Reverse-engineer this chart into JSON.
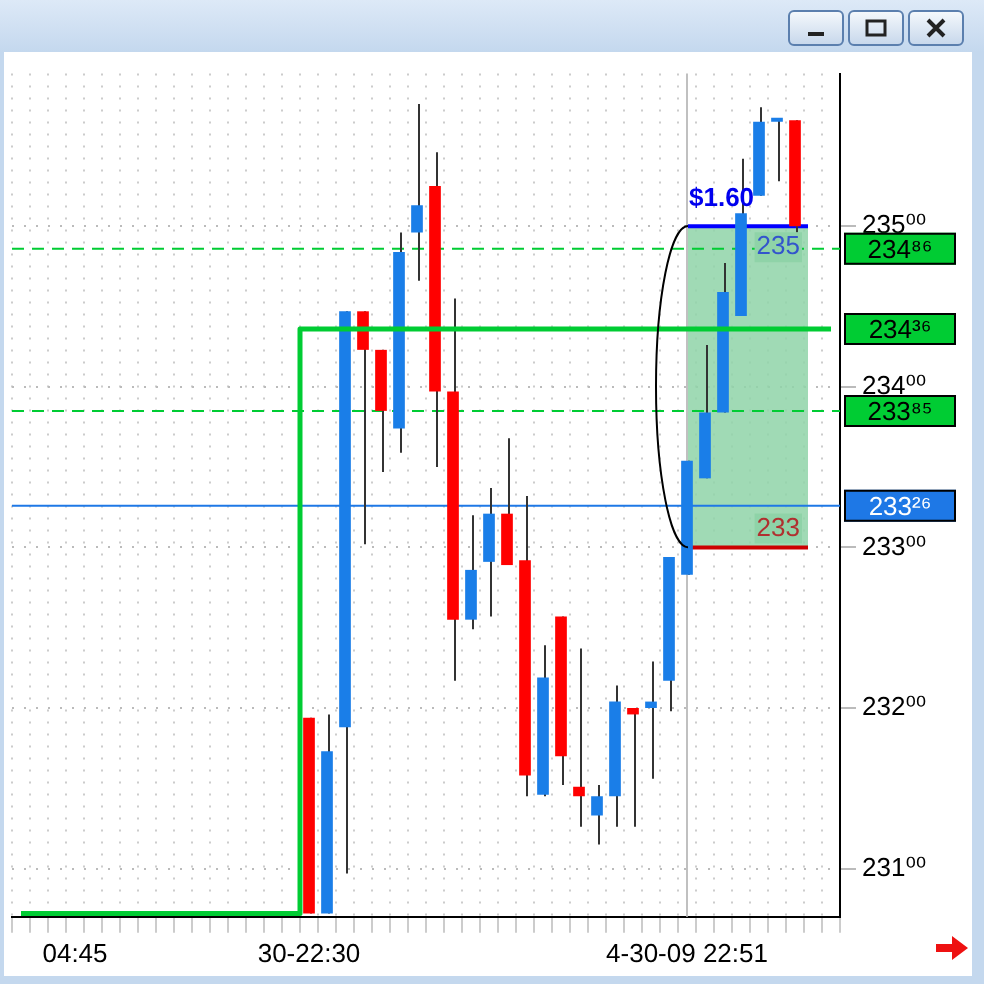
{
  "chart_data": {
    "type": "candlestick",
    "categories": [
      null,
      null,
      null,
      "04:45",
      null,
      null,
      null,
      null,
      null,
      null,
      null,
      null,
      null,
      null,
      null,
      null,
      "30-22:30",
      null,
      null,
      null,
      null,
      null,
      null,
      null,
      null,
      null,
      null,
      null,
      null,
      null,
      null,
      null,
      null,
      null,
      null,
      null,
      null,
      "4-30-09 22:51",
      null,
      null,
      null,
      null,
      null,
      null,
      null,
      null
    ],
    "ohlc": [
      null,
      null,
      null,
      null,
      null,
      null,
      null,
      null,
      null,
      null,
      null,
      null,
      null,
      null,
      null,
      null,
      [
        231.94,
        231.94,
        230.72,
        230.72
      ],
      [
        230.72,
        231.96,
        230.72,
        231.73
      ],
      [
        231.88,
        234.47,
        230.97,
        234.47
      ],
      [
        234.47,
        234.47,
        233.02,
        234.23
      ],
      [
        234.23,
        234.23,
        233.47,
        233.85
      ],
      [
        233.74,
        234.96,
        233.59,
        234.84
      ],
      [
        234.96,
        235.76,
        234.66,
        235.13
      ],
      [
        235.25,
        235.46,
        233.5,
        233.97
      ],
      [
        233.97,
        234.55,
        232.17,
        232.55
      ],
      [
        232.55,
        233.2,
        232.49,
        232.86
      ],
      [
        232.91,
        233.37,
        232.57,
        233.21
      ],
      [
        233.21,
        233.68,
        232.89,
        232.89
      ],
      [
        232.92,
        233.32,
        231.45,
        231.58
      ],
      [
        231.46,
        232.39,
        231.45,
        232.19
      ],
      [
        232.57,
        232.57,
        231.52,
        231.7
      ],
      [
        231.51,
        232.37,
        231.26,
        231.45
      ],
      [
        231.33,
        231.52,
        231.15,
        231.45
      ],
      [
        231.45,
        232.14,
        231.26,
        232.04
      ],
      [
        232.0,
        232.0,
        231.26,
        231.96
      ],
      [
        232.0,
        232.29,
        231.56,
        232.04
      ],
      [
        232.17,
        232.94,
        231.98,
        232.94
      ],
      [
        232.83,
        233.54,
        232.83,
        233.54
      ],
      [
        233.43,
        234.26,
        233.43,
        233.84
      ],
      [
        233.84,
        234.77,
        233.84,
        234.59
      ],
      [
        234.44,
        235.42,
        234.44,
        235.08
      ],
      [
        235.19,
        235.74,
        235.19,
        235.65
      ],
      [
        235.65,
        235.66,
        235.28,
        235.66
      ],
      [
        235.66,
        235.66,
        234.96,
        235.0
      ],
      null,
      null
    ],
    "colors": [
      null,
      null,
      null,
      null,
      null,
      null,
      null,
      null,
      null,
      null,
      null,
      null,
      null,
      null,
      null,
      null,
      "#ff0000",
      "#1a7ee8",
      "#1a7ee8",
      "#ff0000",
      "#ff0000",
      "#1a7ee8",
      "#1a7ee8",
      "#ff0000",
      "#ff0000",
      "#1a7ee8",
      "#1a7ee8",
      "#ff0000",
      "#ff0000",
      "#1a7ee8",
      "#ff0000",
      "#ff0000",
      "#1a7ee8",
      "#1a7ee8",
      "#ff0000",
      "#1a7ee8",
      "#1a7ee8",
      "#1a7ee8",
      "#1a7ee8",
      "#1a7ee8",
      "#1a7ee8",
      "#1a7ee8",
      "#1a7ee8",
      "#ff0000",
      null,
      null
    ],
    "series": [
      {
        "type": "step",
        "color": "#00cc33",
        "values": [
          230.72,
          230.72,
          230.72,
          230.72,
          230.72,
          230.72,
          230.72,
          230.72,
          230.72,
          230.72,
          230.72,
          230.72,
          230.72,
          230.72,
          230.72,
          230.72,
          234.36,
          234.36,
          234.36,
          234.36,
          234.36,
          234.36,
          234.36,
          234.36,
          234.36,
          234.36,
          234.36,
          234.36,
          234.36,
          234.36,
          234.36,
          234.36,
          234.36,
          234.36,
          234.36,
          234.36,
          234.36,
          234.36,
          234.36,
          234.36,
          234.36,
          234.36,
          234.36,
          234.36,
          234.36,
          234.36
        ],
        "value_labels": [
          null,
          null,
          null,
          null,
          null,
          null,
          null,
          null,
          null,
          null,
          null,
          null,
          null,
          null,
          null,
          null,
          null,
          null,
          null,
          null,
          null,
          null,
          null,
          null,
          null,
          null,
          null,
          null,
          null,
          null,
          null,
          null,
          null,
          null,
          null,
          null,
          null,
          null,
          null,
          null,
          null,
          null,
          null,
          null,
          null,
          "234³⁶"
        ]
      }
    ],
    "ylim": [
      230.7,
      235.95
    ],
    "yticks": [
      {
        "value": 231,
        "label": "231⁰⁰"
      },
      {
        "value": 232,
        "label": "232⁰⁰"
      },
      {
        "value": 233,
        "label": "233⁰⁰"
      },
      {
        "value": 234,
        "label": "234⁰⁰"
      },
      {
        "value": 235,
        "label": "235⁰⁰"
      }
    ],
    "ref_lines": [
      {
        "axis": "y",
        "value": 234.86,
        "label": "234⁸⁶",
        "color": "#00cc33",
        "line_style": "dashed"
      },
      {
        "axis": "y",
        "value": 233.85,
        "label": "233⁸⁵",
        "color": "#00cc33",
        "line_style": "dashed"
      },
      {
        "axis": "y",
        "value": 233.26,
        "label": "233²⁶",
        "color": "#1e78e6",
        "line_style": "solid"
      },
      {
        "axis": "x",
        "value": "4-30-09 22:51",
        "color": "#c0c0c0",
        "line_style": "solid"
      }
    ],
    "bands": [
      {
        "axis": "y",
        "from": 233,
        "to": 235,
        "label": "$1.60",
        "color": "#8fd3a8"
      }
    ],
    "annotations": [
      {
        "text": "235",
        "y": 235
      },
      {
        "text": "233",
        "y": 233
      }
    ],
    "grid": true,
    "legend": false
  }
}
